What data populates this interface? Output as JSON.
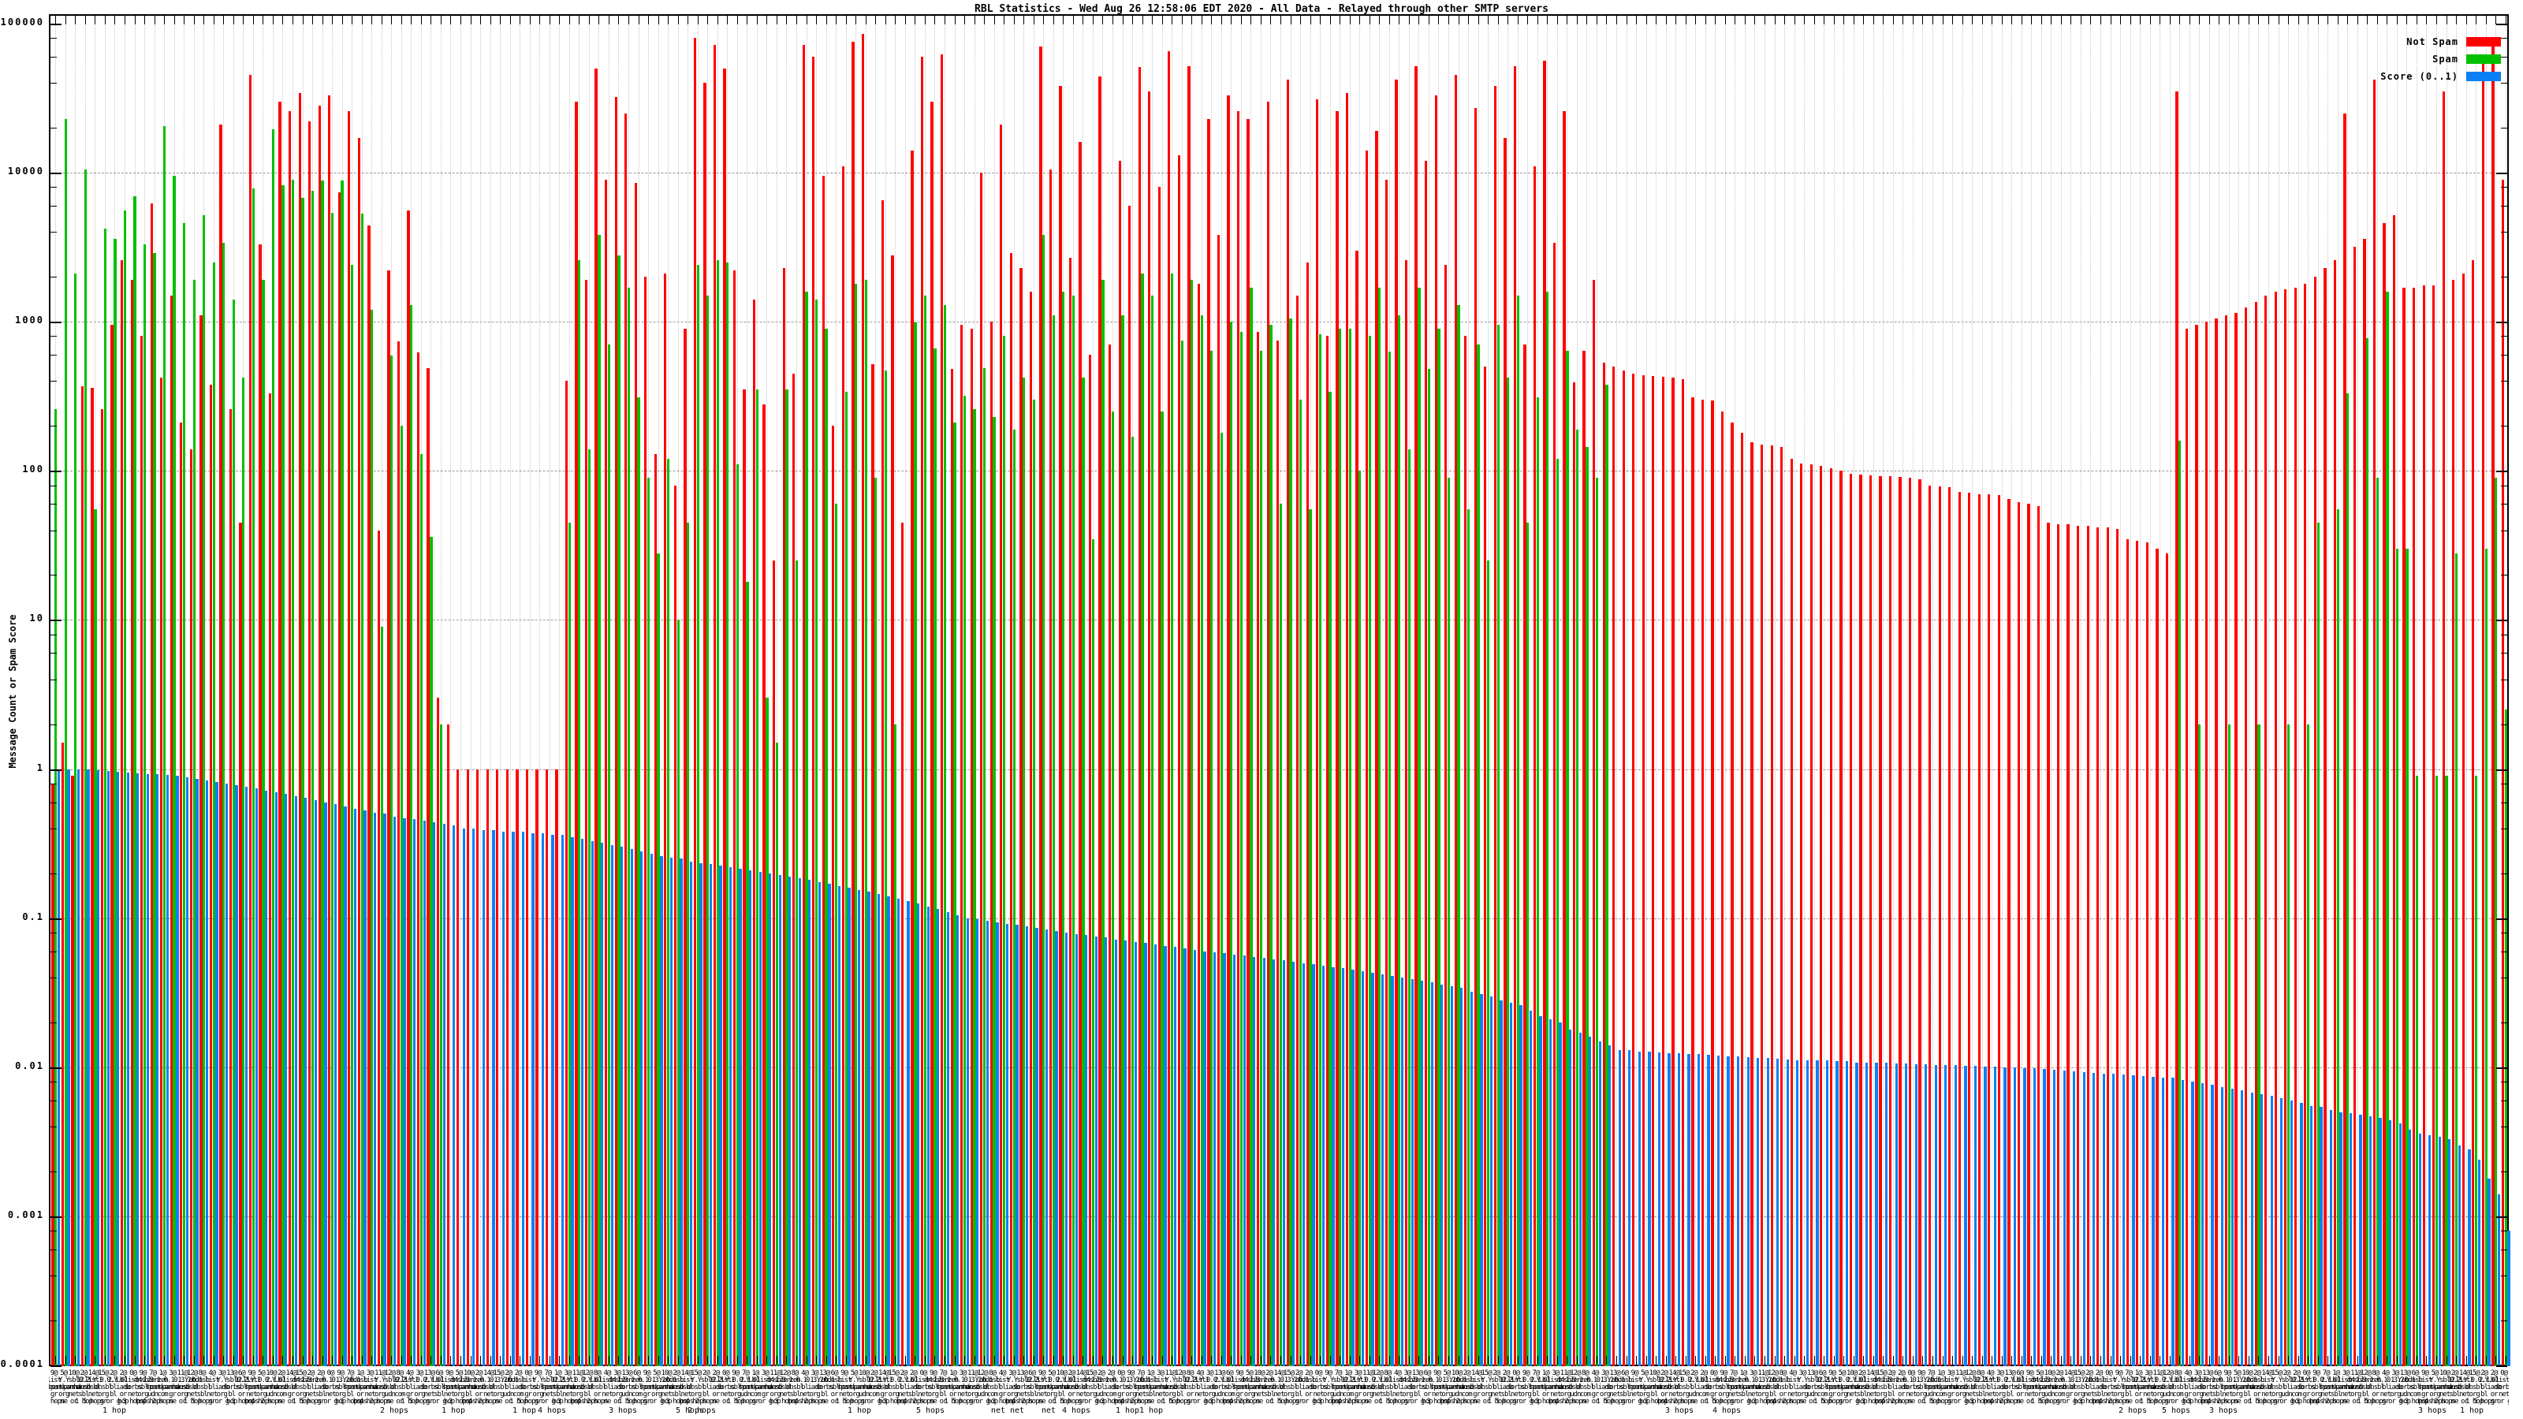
{
  "title": "RBL Statistics - Wed Aug 26 12:58:06 EDT 2020 - All Data - Relayed through other SMTP servers",
  "y_axis_label": "Message Count or Spam Score",
  "legend": [
    {
      "label": "Not Spam",
      "color": "#ff0000"
    },
    {
      "label": "Spam",
      "color": "#00c000"
    },
    {
      "label": "Score (0..1)",
      "color": "#0b80f5"
    }
  ],
  "colors": {
    "not_spam": "#ff0000",
    "spam": "#00c000",
    "score": "#0b80f5",
    "grid_v": "#c6c6c6",
    "grid_h": "#9a9a9a",
    "border": "#000000"
  },
  "y_ticks": [
    {
      "label": "100000",
      "value": 100000
    },
    {
      "label": "10000",
      "value": 10000
    },
    {
      "label": "1000",
      "value": 1000
    },
    {
      "label": "100",
      "value": 100
    },
    {
      "label": "10",
      "value": 10
    },
    {
      "label": "1",
      "value": 1
    },
    {
      "label": "0.1",
      "value": 0.1
    },
    {
      "label": "0.01",
      "value": 0.01
    },
    {
      "label": "0.001",
      "value": 0.001
    },
    {
      "label": "0.0001",
      "value": 0.0001
    }
  ],
  "chart_data": {
    "type": "bar",
    "log_scale_y": true,
    "ylim": [
      0.0001,
      100000
    ],
    "grid": true,
    "legend_position": "top-right",
    "title": "RBL Statistics - Wed Aug 26 12:58:06 EDT 2020 - All Data - Relayed through other SMTP servers",
    "ylabel": "Message Count or Spam Score",
    "series_names": [
      "Not Spam",
      "Spam",
      "Score (0..1)"
    ],
    "x_label_fragments_rows": [
      [
        "9@",
        "2@",
        "2@",
        "9@",
        "3@",
        "8@",
        "13@",
        "5@",
        "14@",
        "2@",
        "7@",
        "11@",
        "4@",
        "6@",
        "10@",
        "15@",
        "0@",
        "1@",
        "12@",
        "3@"
      ],
      [
        "zen",
        "sbl",
        "dnsbl",
        "list",
        "b.",
        "ub",
        "0.2.Y.0.0.Y.01",
        "1.3.1.0.1.1.Y.0.1",
        "12.3",
        "zen",
        "Y.Y",
        "list4",
        "dnsb",
        "2.1",
        "0.3.2",
        "list1"
      ],
      [
        "spamhaus",
        "dnsbl",
        "sorbs",
        "hostkarma",
        "dsbl",
        "iadb",
        "spam",
        "dnsb",
        "bl",
        "sbl"
      ],
      [
        "org",
        "net",
        "com",
        "bl",
        "org",
        "net",
        "sbl",
        "udn",
        "org",
        "gr",
        "or",
        "net"
      ],
      [
        "1 hop",
        "2 hops",
        "3 hops",
        "gr",
        "or",
        "4 hops",
        "hop",
        "5 hops",
        "ne",
        "hops",
        "or g"
      ]
    ],
    "x_sublabels": [
      {
        "text": "1 hop",
        "x": 145
      },
      {
        "text": "2 hops",
        "x": 500
      },
      {
        "text": "1 hop",
        "x": 575
      },
      {
        "text": "1 hop",
        "x": 665
      },
      {
        "text": "4 hops",
        "x": 700
      },
      {
        "text": "3 hops",
        "x": 790
      },
      {
        "text": "5 hops",
        "x": 875
      },
      {
        "text": "2 hops",
        "x": 890
      },
      {
        "text": "1 hop",
        "x": 1090
      },
      {
        "text": "5 hops",
        "x": 1180
      },
      {
        "text": "net net",
        "x": 1278
      },
      {
        "text": "net",
        "x": 1330
      },
      {
        "text": "4 hops",
        "x": 1365
      },
      {
        "text": "1 hop",
        "x": 1460
      },
      {
        "text": "1 hop",
        "x": 1430
      },
      {
        "text": "4 hops",
        "x": 2190
      },
      {
        "text": "3 hops",
        "x": 2130
      },
      {
        "text": "2 hops",
        "x": 2705
      },
      {
        "text": "5 hops",
        "x": 2760
      },
      {
        "text": "3 hops",
        "x": 2820
      },
      {
        "text": "3 hops",
        "x": 3085
      },
      {
        "text": "1 hop",
        "x": 3135
      }
    ],
    "groups_format": [
      "not_spam_count",
      "spam_count",
      "score_0_to_1"
    ],
    "groups": [
      [
        0.8,
        260,
        1.0
      ],
      [
        1.5,
        23000,
        1.0
      ],
      [
        0.9,
        2100,
        1.0
      ],
      [
        370,
        10500,
        0.99
      ],
      [
        360,
        55,
        0.98
      ],
      [
        260,
        4200,
        0.97
      ],
      [
        950,
        3600,
        0.96
      ],
      [
        2600,
        5600,
        0.95
      ],
      [
        1900,
        6900,
        0.94
      ],
      [
        800,
        3300,
        0.93
      ],
      [
        6200,
        2900,
        0.92
      ],
      [
        420,
        20500,
        0.91
      ],
      [
        1500,
        9500,
        0.9
      ],
      [
        210,
        4600,
        0.88
      ],
      [
        140,
        1900,
        0.86
      ],
      [
        1100,
        5200,
        0.84
      ],
      [
        380,
        2500,
        0.82
      ],
      [
        21000,
        3400,
        0.8
      ],
      [
        260,
        1400,
        0.78
      ],
      [
        45,
        420,
        0.76
      ],
      [
        45000,
        7800,
        0.74
      ],
      [
        3300,
        1900,
        0.72
      ],
      [
        330,
        19500,
        0.7
      ],
      [
        30000,
        8200,
        0.68
      ],
      [
        26000,
        9000,
        0.66
      ],
      [
        34000,
        6800,
        0.64
      ],
      [
        22000,
        7600,
        0.62
      ],
      [
        28000,
        8800,
        0.6
      ],
      [
        33000,
        5400,
        0.58
      ],
      [
        7400,
        8800,
        0.56
      ],
      [
        26000,
        2400,
        0.54
      ],
      [
        17000,
        5300,
        0.53
      ],
      [
        4400,
        1200,
        0.51
      ],
      [
        40,
        9,
        0.5
      ],
      [
        2200,
        590,
        0.48
      ],
      [
        740,
        200,
        0.47
      ],
      [
        5600,
        1300,
        0.46
      ],
      [
        620,
        130,
        0.45
      ],
      [
        490,
        36,
        0.44
      ],
      [
        3,
        2,
        0.43
      ],
      [
        2,
        0,
        0.42
      ],
      [
        1,
        0,
        0.4
      ],
      [
        1,
        0,
        0.4
      ],
      [
        1,
        0,
        0.39
      ],
      [
        1,
        0,
        0.39
      ],
      [
        1,
        0,
        0.38
      ],
      [
        1,
        0,
        0.38
      ],
      [
        1,
        0,
        0.38
      ],
      [
        1,
        0,
        0.37
      ],
      [
        1,
        0,
        0.37
      ],
      [
        1,
        0,
        0.36
      ],
      [
        1,
        0,
        0.36
      ],
      [
        400,
        45,
        0.35
      ],
      [
        30000,
        2600,
        0.34
      ],
      [
        1900,
        140,
        0.33
      ],
      [
        50000,
        3800,
        0.32
      ],
      [
        9000,
        700,
        0.31
      ],
      [
        32000,
        2800,
        0.3
      ],
      [
        25000,
        1700,
        0.29
      ],
      [
        8500,
        310,
        0.28
      ],
      [
        2000,
        90,
        0.27
      ],
      [
        130,
        28,
        0.26
      ],
      [
        2100,
        120,
        0.255
      ],
      [
        80,
        10,
        0.25
      ],
      [
        900,
        45,
        0.24
      ],
      [
        80000,
        2400,
        0.235
      ],
      [
        40000,
        1500,
        0.23
      ],
      [
        72000,
        2600,
        0.225
      ],
      [
        50000,
        2500,
        0.22
      ],
      [
        2200,
        110,
        0.215
      ],
      [
        350,
        18,
        0.21
      ],
      [
        1400,
        350,
        0.205
      ],
      [
        280,
        3,
        0.2
      ],
      [
        25,
        1.5,
        0.195
      ],
      [
        2300,
        350,
        0.19
      ],
      [
        450,
        25,
        0.185
      ],
      [
        72000,
        1600,
        0.18
      ],
      [
        60000,
        1400,
        0.175
      ],
      [
        9500,
        900,
        0.17
      ],
      [
        200,
        60,
        0.165
      ],
      [
        11000,
        340,
        0.16
      ],
      [
        75000,
        1800,
        0.155
      ],
      [
        85000,
        1900,
        0.15
      ],
      [
        520,
        90,
        0.145
      ],
      [
        6500,
        470,
        0.14
      ],
      [
        2800,
        2,
        0.135
      ],
      [
        45,
        0,
        0.13
      ],
      [
        14000,
        990,
        0.125
      ],
      [
        60000,
        1500,
        0.12
      ],
      [
        30000,
        660,
        0.115
      ],
      [
        62000,
        1300,
        0.11
      ],
      [
        480,
        210,
        0.105
      ],
      [
        950,
        320,
        0.1
      ],
      [
        900,
        260,
        0.098
      ],
      [
        10000,
        490,
        0.096
      ],
      [
        1000,
        230,
        0.094
      ],
      [
        21000,
        800,
        0.092
      ],
      [
        2900,
        190,
        0.09
      ],
      [
        2300,
        420,
        0.088
      ],
      [
        1600,
        300,
        0.086
      ],
      [
        70000,
        3800,
        0.084
      ],
      [
        10500,
        1100,
        0.082
      ],
      [
        38000,
        1600,
        0.08
      ],
      [
        2700,
        1500,
        0.078
      ],
      [
        16000,
        420,
        0.077
      ],
      [
        600,
        35,
        0.075
      ],
      [
        44000,
        1900,
        0.074
      ],
      [
        700,
        250,
        0.072
      ],
      [
        12000,
        1100,
        0.071
      ],
      [
        6000,
        170,
        0.069
      ],
      [
        51000,
        2100,
        0.068
      ],
      [
        35000,
        1500,
        0.067
      ],
      [
        8000,
        250,
        0.065
      ],
      [
        65000,
        2100,
        0.064
      ],
      [
        13000,
        750,
        0.063
      ],
      [
        52000,
        1900,
        0.061
      ],
      [
        1800,
        1100,
        0.06
      ],
      [
        23000,
        640,
        0.059
      ],
      [
        3800,
        180,
        0.058
      ],
      [
        33000,
        1000,
        0.057
      ],
      [
        26000,
        850,
        0.056
      ],
      [
        23000,
        1700,
        0.055
      ],
      [
        850,
        640,
        0.054
      ],
      [
        30000,
        950,
        0.053
      ],
      [
        750,
        60,
        0.052
      ],
      [
        42000,
        1050,
        0.051
      ],
      [
        1500,
        300,
        0.05
      ],
      [
        2500,
        55,
        0.049
      ],
      [
        31000,
        820,
        0.048
      ],
      [
        800,
        340,
        0.047
      ],
      [
        26000,
        900,
        0.046
      ],
      [
        34000,
        900,
        0.045
      ],
      [
        3000,
        100,
        0.044
      ],
      [
        14000,
        800,
        0.043
      ],
      [
        19000,
        1700,
        0.042
      ],
      [
        9000,
        630,
        0.041
      ],
      [
        42000,
        1100,
        0.04
      ],
      [
        2600,
        140,
        0.039
      ],
      [
        52000,
        1700,
        0.038
      ],
      [
        12000,
        480,
        0.037
      ],
      [
        33000,
        900,
        0.036
      ],
      [
        2400,
        90,
        0.035
      ],
      [
        45000,
        1300,
        0.034
      ],
      [
        800,
        55,
        0.032
      ],
      [
        27000,
        700,
        0.031
      ],
      [
        500,
        25,
        0.03
      ],
      [
        38000,
        950,
        0.028
      ],
      [
        17000,
        420,
        0.027
      ],
      [
        52000,
        1500,
        0.026
      ],
      [
        700,
        45,
        0.024
      ],
      [
        11000,
        310,
        0.022
      ],
      [
        56000,
        1600,
        0.021
      ],
      [
        3400,
        120,
        0.02
      ],
      [
        26000,
        640,
        0.018
      ],
      [
        390,
        190,
        0.017
      ],
      [
        640,
        145,
        0.016
      ],
      [
        1900,
        90,
        0.015
      ],
      [
        530,
        380,
        0.014
      ],
      [
        500,
        0,
        0.013
      ],
      [
        470,
        0,
        0.013
      ],
      [
        450,
        0,
        0.0128
      ],
      [
        440,
        0,
        0.0127
      ],
      [
        430,
        0,
        0.0126
      ],
      [
        425,
        0,
        0.0125
      ],
      [
        420,
        0,
        0.0124
      ],
      [
        410,
        0,
        0.0123
      ],
      [
        310,
        0,
        0.0122
      ],
      [
        300,
        0,
        0.0121
      ],
      [
        295,
        0,
        0.012
      ],
      [
        250,
        0,
        0.0119
      ],
      [
        210,
        0,
        0.0118
      ],
      [
        180,
        0,
        0.0117
      ],
      [
        155,
        0,
        0.0116
      ],
      [
        150,
        0,
        0.0115
      ],
      [
        148,
        0,
        0.0114
      ],
      [
        145,
        0,
        0.0113
      ],
      [
        120,
        0,
        0.0112
      ],
      [
        112,
        0,
        0.0112
      ],
      [
        110,
        0,
        0.0111
      ],
      [
        108,
        0,
        0.0111
      ],
      [
        104,
        0,
        0.011
      ],
      [
        100,
        0,
        0.011
      ],
      [
        95,
        0,
        0.0108
      ],
      [
        94,
        0,
        0.0108
      ],
      [
        93,
        0,
        0.0107
      ],
      [
        92,
        0,
        0.0107
      ],
      [
        92,
        0,
        0.0106
      ],
      [
        91,
        0,
        0.0106
      ],
      [
        90,
        0,
        0.0105
      ],
      [
        88,
        0,
        0.0105
      ],
      [
        80,
        0,
        0.0104
      ],
      [
        79,
        0,
        0.0103
      ],
      [
        78,
        0,
        0.0103
      ],
      [
        72,
        0,
        0.0102
      ],
      [
        71,
        0,
        0.0102
      ],
      [
        70,
        0,
        0.0101
      ],
      [
        70,
        0,
        0.0101
      ],
      [
        69,
        0,
        0.01
      ],
      [
        65,
        0,
        0.01
      ],
      [
        62,
        0,
        0.0099
      ],
      [
        60,
        0,
        0.0098
      ],
      [
        58,
        0,
        0.0097
      ],
      [
        45,
        0,
        0.0096
      ],
      [
        44,
        0,
        0.0095
      ],
      [
        44,
        0,
        0.0094
      ],
      [
        43,
        0,
        0.0093
      ],
      [
        43,
        0,
        0.0092
      ],
      [
        42,
        0,
        0.0091
      ],
      [
        42,
        0,
        0.009
      ],
      [
        41,
        0,
        0.0089
      ],
      [
        35,
        0,
        0.0088
      ],
      [
        34,
        0,
        0.0087
      ],
      [
        33,
        0,
        0.0086
      ],
      [
        30,
        0,
        0.0085
      ],
      [
        28,
        0,
        0.0085
      ],
      [
        35000,
        160,
        0.0082
      ],
      [
        900,
        0,
        0.008
      ],
      [
        950,
        2,
        0.0078
      ],
      [
        1000,
        0,
        0.0076
      ],
      [
        1050,
        0,
        0.0074
      ],
      [
        1100,
        2,
        0.0072
      ],
      [
        1150,
        0,
        0.007
      ],
      [
        1250,
        0,
        0.0068
      ],
      [
        1350,
        2,
        0.0066
      ],
      [
        1500,
        0,
        0.0064
      ],
      [
        1600,
        0,
        0.0062
      ],
      [
        1650,
        2,
        0.006
      ],
      [
        1700,
        0,
        0.0058
      ],
      [
        1800,
        2,
        0.0055
      ],
      [
        2000,
        45,
        0.0054
      ],
      [
        2300,
        0,
        0.0052
      ],
      [
        2600,
        55,
        0.005
      ],
      [
        25000,
        330,
        0.0049
      ],
      [
        3200,
        0,
        0.0048
      ],
      [
        3600,
        780,
        0.0047
      ],
      [
        42000,
        90,
        0.0046
      ],
      [
        4600,
        1600,
        0.0044
      ],
      [
        5200,
        30,
        0.0042
      ],
      [
        1700,
        30,
        0.0038
      ],
      [
        1700,
        0.9,
        0.0036
      ],
      [
        1750,
        0,
        0.0035
      ],
      [
        1750,
        0.9,
        0.0034
      ],
      [
        35000,
        0.9,
        0.0033
      ],
      [
        1900,
        28,
        0.003
      ],
      [
        2100,
        0,
        0.0028
      ],
      [
        2600,
        0.9,
        0.0024
      ],
      [
        60000,
        30,
        0.0018
      ],
      [
        70000,
        90,
        0.0014
      ],
      [
        9000,
        2.5,
        0.0008
      ]
    ]
  }
}
